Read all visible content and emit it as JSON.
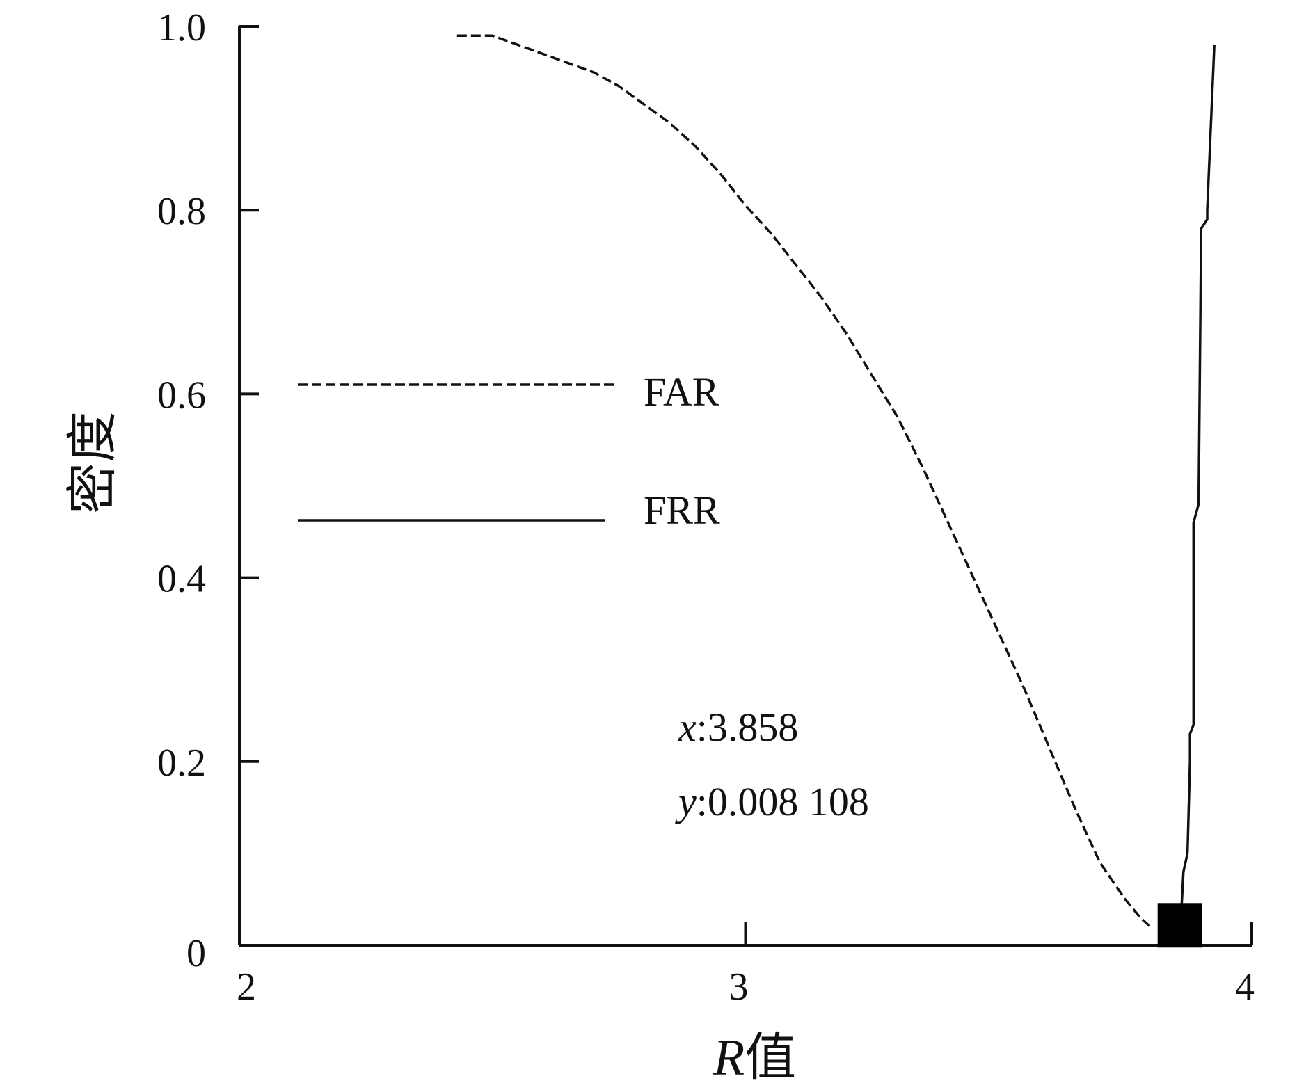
{
  "chart_data": {
    "type": "line",
    "title": "",
    "xlabel": "R",
    "xlabel_suffix": "值",
    "ylabel": "密度",
    "xlim": [
      2,
      4
    ],
    "ylim": [
      0,
      1
    ],
    "x_ticks": [
      2,
      3,
      4
    ],
    "x_tick_labels": [
      "2",
      "3",
      "4"
    ],
    "y_ticks": [
      0,
      0.2,
      0.4,
      0.6,
      0.8,
      1.0
    ],
    "y_tick_labels": [
      "0",
      "0.2",
      "0.4",
      "0.6",
      "0.8",
      "1.0"
    ],
    "grid": false,
    "legend": {
      "placement": "upper-left",
      "entries": [
        {
          "label": "FAR",
          "style": "dashed"
        },
        {
          "label": "FRR",
          "style": "solid"
        }
      ]
    },
    "series": [
      {
        "name": "FAR",
        "style": "dashed",
        "x": [
          2.43,
          2.5,
          2.55,
          2.6,
          2.65,
          2.7,
          2.75,
          2.8,
          2.85,
          2.9,
          2.95,
          3.0,
          3.05,
          3.1,
          3.15,
          3.2,
          3.25,
          3.3,
          3.35,
          3.4,
          3.45,
          3.5,
          3.55,
          3.6,
          3.65,
          3.7,
          3.75,
          3.78,
          3.8
        ],
        "y": [
          0.99,
          0.99,
          0.98,
          0.97,
          0.96,
          0.95,
          0.935,
          0.915,
          0.895,
          0.87,
          0.84,
          0.805,
          0.775,
          0.74,
          0.705,
          0.665,
          0.62,
          0.575,
          0.52,
          0.46,
          0.4,
          0.34,
          0.28,
          0.215,
          0.15,
          0.09,
          0.05,
          0.03,
          0.02
        ]
      },
      {
        "name": "FRR",
        "style": "solid",
        "x": [
          3.858,
          3.865,
          3.873,
          3.878,
          3.878,
          3.885,
          3.885,
          3.895,
          3.9,
          3.912,
          3.912,
          3.926
        ],
        "y": [
          0.008108,
          0.08,
          0.1,
          0.2,
          0.23,
          0.24,
          0.46,
          0.48,
          0.78,
          0.79,
          0.8,
          0.98
        ]
      }
    ],
    "annotations": {
      "x_label": "x",
      "x_value": ":3.858",
      "y_label": "y",
      "y_value": ":0.008 108",
      "marker": {
        "x": 3.858,
        "y": 0.008108,
        "shape": "square"
      }
    }
  }
}
